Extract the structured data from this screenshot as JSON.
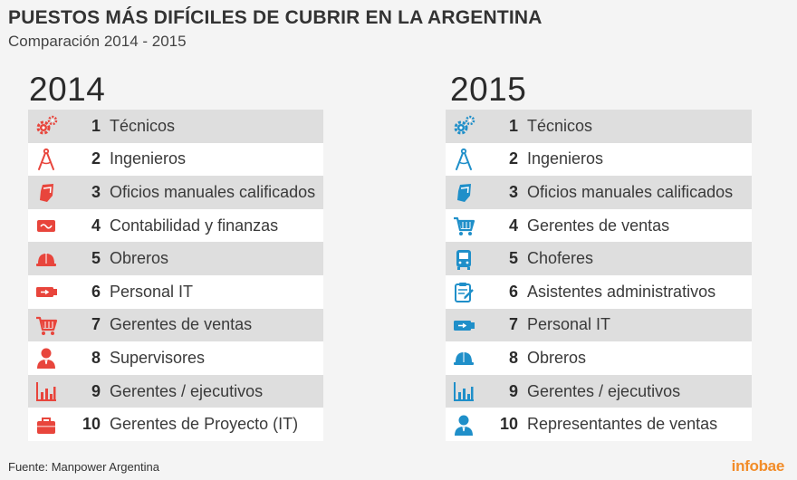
{
  "header": {
    "title": "PUESTOS MÁS DIFÍCILES DE CUBRIR EN LA ARGENTINA",
    "subtitle": "Comparación 2014 - 2015"
  },
  "colors": {
    "y2014_icon": "#e8453c",
    "y2015_icon": "#1f8fc9",
    "row_odd": "#dedede",
    "row_even": "#ffffff",
    "brand": "#f28c28"
  },
  "y2014": {
    "year": "2014",
    "items": [
      {
        "rank": "1",
        "label": "Técnicos",
        "icon": "gears-icon"
      },
      {
        "rank": "2",
        "label": "Ingenieros",
        "icon": "compass-icon"
      },
      {
        "rank": "3",
        "label": "Oficios manuales calificados",
        "icon": "hand-icon"
      },
      {
        "rank": "4",
        "label": "Contabilidad y finanzas",
        "icon": "money-icon"
      },
      {
        "rank": "5",
        "label": "Obreros",
        "icon": "helmet-icon"
      },
      {
        "rank": "6",
        "label": "Personal IT",
        "icon": "usb-icon"
      },
      {
        "rank": "7",
        "label": "Gerentes de ventas",
        "icon": "cart-icon"
      },
      {
        "rank": "8",
        "label": "Supervisores",
        "icon": "person-icon"
      },
      {
        "rank": "9",
        "label": "Gerentes / ejecutivos",
        "icon": "bar-chart-icon"
      },
      {
        "rank": "10",
        "label": "Gerentes de Proyecto (IT)",
        "icon": "briefcase-icon"
      }
    ]
  },
  "y2015": {
    "year": "2015",
    "items": [
      {
        "rank": "1",
        "label": "Técnicos",
        "icon": "gears-icon"
      },
      {
        "rank": "2",
        "label": "Ingenieros",
        "icon": "compass-icon"
      },
      {
        "rank": "3",
        "label": "Oficios manuales calificados",
        "icon": "hand-icon"
      },
      {
        "rank": "4",
        "label": "Gerentes de ventas",
        "icon": "cart-icon"
      },
      {
        "rank": "5",
        "label": "Choferes",
        "icon": "bus-icon"
      },
      {
        "rank": "6",
        "label": "Asistentes administrativos",
        "icon": "clipboard-icon"
      },
      {
        "rank": "7",
        "label": "Personal IT",
        "icon": "usb-icon"
      },
      {
        "rank": "8",
        "label": "Obreros",
        "icon": "helmet-icon"
      },
      {
        "rank": "9",
        "label": "Gerentes / ejecutivos",
        "icon": "bar-chart-icon"
      },
      {
        "rank": "10",
        "label": "Representantes de ventas",
        "icon": "person-icon"
      }
    ]
  },
  "footer": {
    "source": "Fuente: Manpower Argentina",
    "brand": "infobae"
  }
}
